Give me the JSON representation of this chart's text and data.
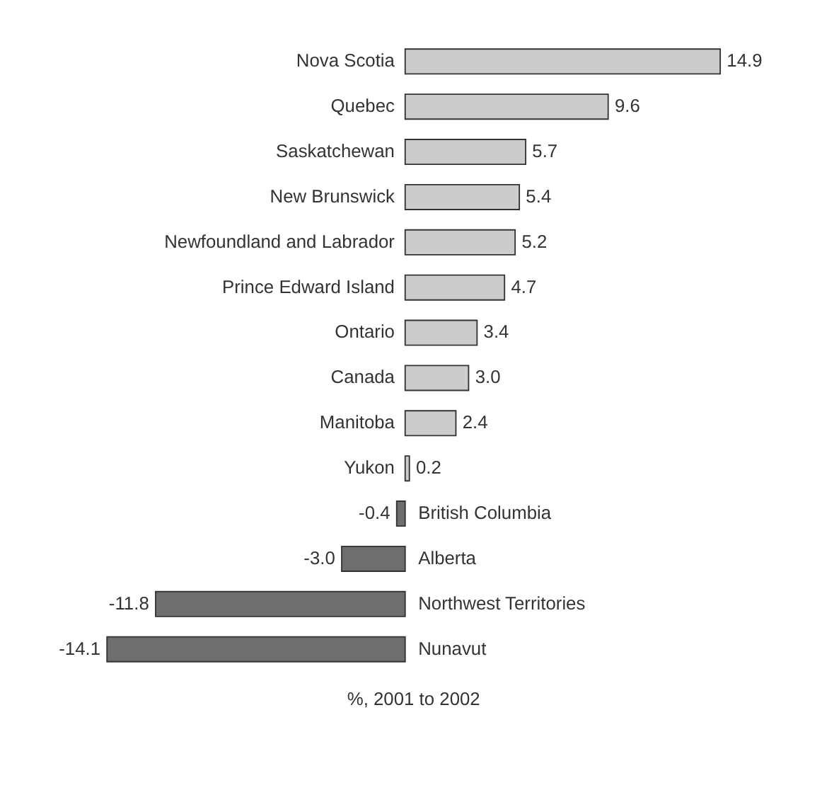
{
  "chart_data": {
    "type": "bar",
    "orientation": "horizontal",
    "xlabel": "%, 2001 to 2002",
    "value_labels": [
      "14.9",
      "9.6",
      "5.7",
      "5.4",
      "5.2",
      "4.7",
      "3.4",
      "3.0",
      "2.4",
      "0.2",
      "-0.4",
      "-3.0",
      "-11.8",
      "-14.1"
    ],
    "categories": [
      "Nova Scotia",
      "Quebec",
      "Saskatchewan",
      "New Brunswick",
      "Newfoundland and Labrador",
      "Prince Edward Island",
      "Ontario",
      "Canada",
      "Manitoba",
      "Yukon",
      "British Columbia",
      "Alberta",
      "Northwest Territories",
      "Nunavut"
    ],
    "values": [
      14.9,
      9.6,
      5.7,
      5.4,
      5.2,
      4.7,
      3.4,
      3.0,
      2.4,
      0.2,
      -0.4,
      -3.0,
      -11.8,
      -14.1
    ],
    "colors": [
      "#cccccc",
      "#cccccc",
      "#cccccc",
      "#cccccc",
      "#cccccc",
      "#cccccc",
      "#cccccc",
      "#cccccc",
      "#cccccc",
      "#cccccc",
      "#6e6e6e",
      "#6e6e6e",
      "#6e6e6e",
      "#6e6e6e"
    ]
  }
}
